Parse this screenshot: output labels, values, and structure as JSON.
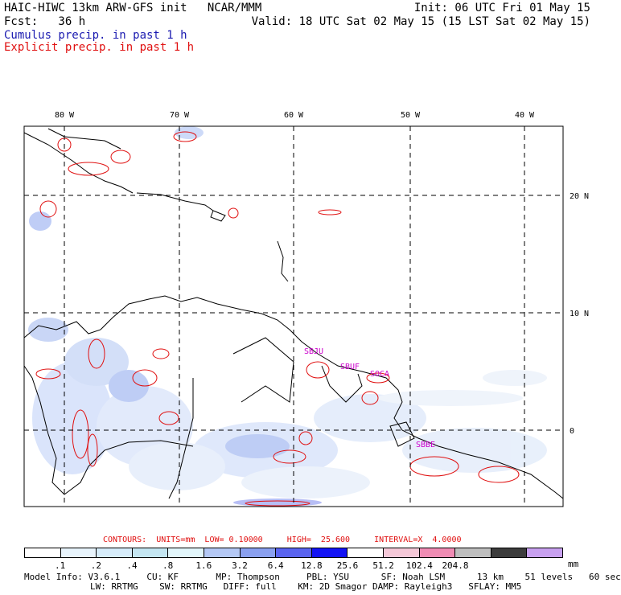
{
  "header": {
    "title": "HAIC-HIWC 13km ARW-GFS init   NCAR/MMM",
    "forecast": "Fcst:   36 h",
    "init": "Init: 06 UTC Fri 01 May 15",
    "valid": "Valid: 18 UTC Sat 02 May 15 (15 LST Sat 02 May 15)",
    "cumulus_label": "Cumulus precip. in past 1 h",
    "explicit_label": "Explicit precip. in past 1 h"
  },
  "map": {
    "lon_labels": [
      "80 W",
      "70 W",
      "60 W",
      "50 W",
      "40 W"
    ],
    "lat_labels": [
      "20 N",
      "10 N",
      "0"
    ],
    "stations": [
      "SBJU",
      "SBUF",
      "SOCA",
      "SBBE"
    ]
  },
  "contours_text": "CONTOURS:  UNITS=mm  LOW= 0.10000     HIGH=  25.600     INTERVAL=X  4.0000",
  "colorbar": {
    "colors": [
      "#ffffff",
      "#e8f4fc",
      "#d6ecfa",
      "#c4e6f2",
      "#e2f6fb",
      "#b4c8f5",
      "#8aa0f0",
      "#5a64f0",
      "#1414f5",
      "#ffffff",
      "#f5c8d8",
      "#f08cb4",
      "#bebebe",
      "#3c3c3c",
      "#c8a0f0"
    ],
    "ticks": [
      ".1",
      ".2",
      ".4",
      ".8",
      "1.6",
      "3.2",
      "6.4",
      "12.8",
      "25.6",
      "51.2",
      "102.4",
      "204.8"
    ],
    "unit": "mm"
  },
  "model_info": {
    "line1": "Model Info: V3.6.1     CU: KF       MP: Thompson     PBL: YSU      SF: Noah LSM      13 km    51 levels   60 sec",
    "line2": "LW: RRTMG    SW: RRTMG   DIFF: full    KM: 2D Smagor DAMP: Rayleigh3   SFLAY: MM5"
  },
  "colors": {
    "explicit": "#e01010",
    "cumulus": "#1a1ab0",
    "station": "#cc00cc"
  }
}
